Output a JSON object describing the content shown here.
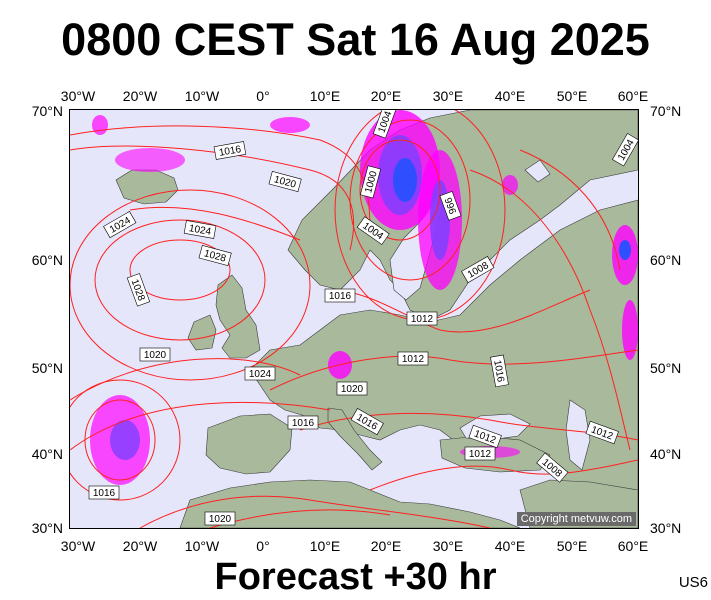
{
  "title": "0800 CEST Sat 16 Aug 2025",
  "footer": "Forecast +30 hr",
  "model_code": "US6",
  "copyright": "Copyright metvuw.com",
  "axes": {
    "lon_labels": [
      "30°W",
      "20°W",
      "10°W",
      "0°",
      "10°E",
      "20°E",
      "30°E",
      "40°E",
      "50°E",
      "60°E"
    ],
    "lat_labels": [
      "70°N",
      "60°N",
      "50°N",
      "40°N",
      "30°N"
    ]
  },
  "isobar_labels": [
    "1016",
    "1020",
    "1024",
    "1024",
    "1028",
    "1028",
    "1020",
    "1024",
    "1016",
    "1020",
    "1016",
    "1016",
    "1012",
    "1008",
    "1004",
    "1000",
    "996",
    "1004",
    "1012",
    "1016",
    "1012",
    "1012",
    "1008",
    "1012",
    "1004",
    "1016",
    "1020"
  ],
  "colors": {
    "isobar": "#ff2020",
    "land": "#a9b99c",
    "sea": "#e6e6fa",
    "precip_light": "#ff00ff",
    "precip_mid": "#7f3fff",
    "precip_heavy": "#2f4fff"
  }
}
